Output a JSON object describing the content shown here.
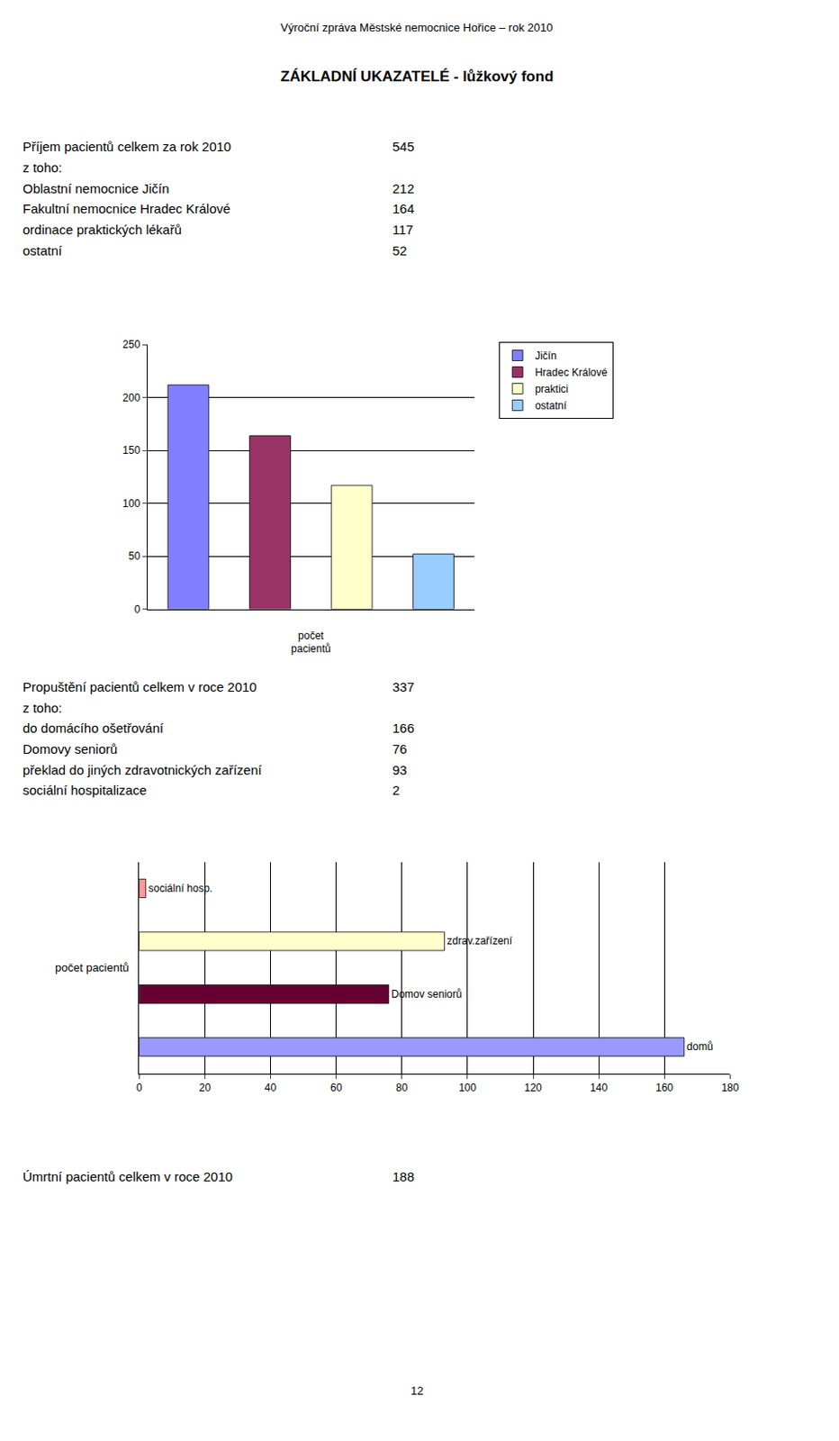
{
  "title": "Výroční zpráva Městské nemocnice Hořice – rok 2010",
  "subtitle": "ZÁKLADNÍ UKAZATELÉ - lůžkový fond",
  "annotations": [
    [
      {
        "text": "Příjem pacientů celkem za rok 2010",
        "value": 545
      },
      {
        "text": "z toho:"
      },
      {
        "text": "Oblastní nemocnice Jičín",
        "value": 212
      },
      {
        "text": "Fakultní nemocnice Hradec Králové",
        "value": 164
      },
      {
        "text": "ordinace praktických lékařů",
        "value": 117
      },
      {
        "text": "ostatní",
        "value": 52
      }
    ],
    [
      {
        "text": "Propuštění pacientů celkem v roce 2010",
        "value": 337
      },
      {
        "text": "z toho:"
      },
      {
        "text": "do domácího ošetřování",
        "value": 166
      },
      {
        "text": "Domovy seniorů",
        "value": 76
      },
      {
        "text": "překlad do jiných zdravotnických zařízení",
        "value": 93
      },
      {
        "text": "sociální hospitalizace",
        "value": 2
      }
    ],
    [
      {
        "text": "Úmrtní pacientů celkem v roce 2010",
        "value": 188
      }
    ]
  ],
  "footer": "12",
  "chart_data": [
    {
      "type": "bar",
      "categories": [
        "Jičín",
        "Hradec Králové",
        "praktici",
        "ostatní"
      ],
      "values": [
        212,
        164,
        117,
        52
      ],
      "colors": [
        "#8080ff",
        "#993366",
        "#ffffcc",
        "#99ccff"
      ],
      "xlabel": "počet\npacientů",
      "ylim": [
        0,
        250
      ],
      "yticks": [
        0,
        50,
        100,
        150,
        200,
        250
      ],
      "grid": true,
      "legend": "right",
      "tick_labels": "y"
    },
    {
      "type": "bar",
      "orientation": "horizontal",
      "categories": [
        "sociální hosp.",
        "zdrav.zařízení",
        "Domov seniorů",
        "domů"
      ],
      "values": [
        2,
        93,
        76,
        166
      ],
      "colors": [
        "#ff9999",
        "#ffffcc",
        "#660033",
        "#9999ff"
      ],
      "ylabel": "počet pacientů",
      "xlim": [
        0,
        180
      ],
      "xticks": [
        0,
        20,
        40,
        60,
        80,
        100,
        120,
        140,
        160,
        180
      ],
      "grid": true,
      "tick_labels": "x"
    }
  ]
}
